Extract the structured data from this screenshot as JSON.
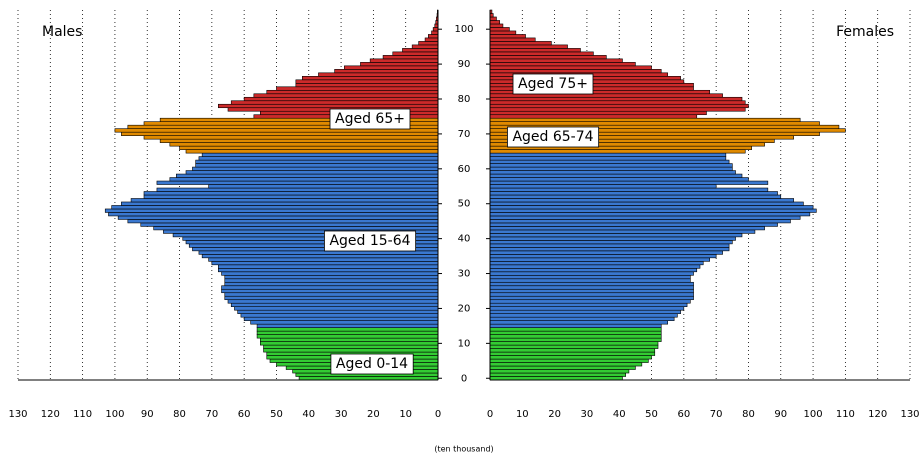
{
  "chart_data": {
    "type": "pyramid",
    "axis_label": "(ten thousand)",
    "xlim": [
      0,
      130
    ],
    "xticks": [
      0,
      10,
      20,
      30,
      40,
      50,
      60,
      70,
      80,
      90,
      100,
      110,
      120,
      130
    ],
    "ylim": [
      -0.5,
      105.5
    ],
    "yticks": [
      0,
      10,
      20,
      30,
      40,
      50,
      60,
      70,
      80,
      90,
      100
    ],
    "grid": true,
    "color_bands": [
      {
        "from": 0,
        "to": 14,
        "color": "#33cc33"
      },
      {
        "from": 15,
        "to": 64,
        "color": "#3a78d0"
      },
      {
        "from": 65,
        "to": 74,
        "color": "#e08a00"
      },
      {
        "from": 75,
        "to": 105,
        "color": "#cc2a2a"
      }
    ],
    "annotations": [
      "Aged 65+",
      "Aged 15-64",
      "Aged 0-14",
      "Aged 75+",
      "Aged 65-74"
    ],
    "series": [
      {
        "name": "Males",
        "values": [
          43,
          44,
          45,
          47,
          50,
          52,
          53,
          53,
          54,
          54,
          55,
          55,
          56,
          56,
          56,
          56,
          58,
          60,
          61,
          62,
          63,
          64,
          65,
          66,
          66,
          67,
          67,
          66,
          66,
          66,
          67,
          68,
          68,
          70,
          71,
          73,
          74,
          76,
          77,
          78,
          79,
          82,
          85,
          88,
          92,
          96,
          99,
          102,
          103,
          101,
          98,
          95,
          91,
          91,
          87,
          71,
          87,
          83,
          81,
          78,
          76,
          75,
          75,
          74,
          73,
          78,
          80,
          83,
          86,
          91,
          98,
          100,
          96,
          91,
          86,
          57,
          55,
          65,
          68,
          64,
          60,
          57,
          53,
          50,
          44,
          44,
          42,
          37,
          32,
          29,
          24,
          21,
          17,
          14,
          11,
          8,
          6,
          4,
          3,
          2,
          1.5,
          1,
          0.7,
          0.5,
          0.3,
          0.2
        ]
      },
      {
        "name": "Females",
        "values": [
          41,
          42,
          43,
          45,
          47,
          49,
          50,
          51,
          51,
          52,
          52,
          53,
          53,
          53,
          53,
          53,
          55,
          57,
          58,
          59,
          60,
          61,
          62,
          63,
          63,
          63,
          63,
          63,
          62,
          62,
          63,
          64,
          65,
          66,
          68,
          70,
          72,
          74,
          74,
          75,
          76,
          78,
          82,
          85,
          89,
          93,
          96,
          99,
          101,
          100,
          97,
          94,
          90,
          89,
          86,
          70,
          86,
          80,
          78,
          76,
          75,
          75,
          74,
          73,
          73,
          79,
          81,
          85,
          88,
          94,
          102,
          110,
          108,
          102,
          96,
          64,
          67,
          79,
          80,
          79,
          78,
          72,
          68,
          63,
          63,
          60,
          59,
          55,
          53,
          50,
          45,
          41,
          36,
          32,
          28,
          24,
          19,
          14,
          11,
          8,
          6,
          4,
          3,
          2,
          1,
          0.6
        ]
      }
    ]
  }
}
